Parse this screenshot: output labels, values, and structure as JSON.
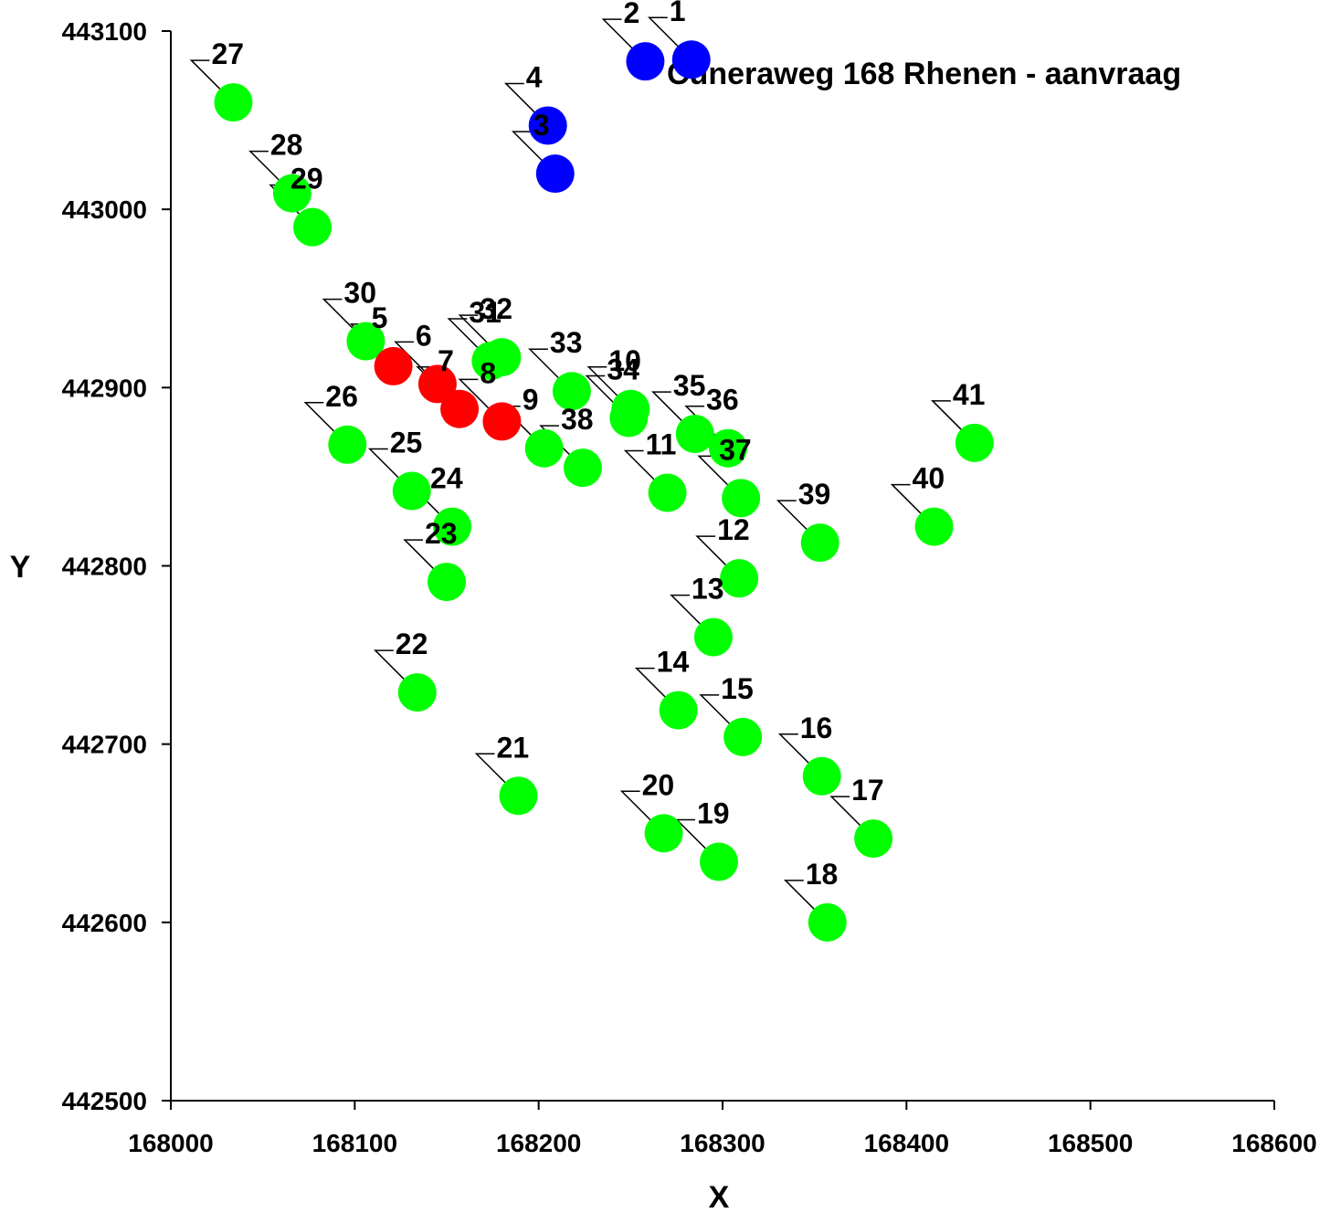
{
  "chart_data": {
    "type": "scatter",
    "title": "Cuneraweg 168 Rhenen - aanvraag",
    "xlabel": "X",
    "ylabel": "Y",
    "xlim": [
      168000,
      168600
    ],
    "ylim": [
      442500,
      443100
    ],
    "xticks": [
      "168000",
      "168100",
      "168200",
      "168300",
      "168400",
      "168500",
      "168600"
    ],
    "yticks": [
      "442500",
      "442600",
      "442700",
      "442800",
      "442900",
      "443000",
      "443100"
    ],
    "grid": false,
    "colors": {
      "blue": "#0000ff",
      "red": "#ff0000",
      "green": "#00ff00"
    },
    "points": [
      {
        "id": "1",
        "x": 168283,
        "y": 443084,
        "color": "blue"
      },
      {
        "id": "2",
        "x": 168258,
        "y": 443083,
        "color": "blue"
      },
      {
        "id": "3",
        "x": 168209,
        "y": 443020,
        "color": "blue"
      },
      {
        "id": "4",
        "x": 168205,
        "y": 443047,
        "color": "blue"
      },
      {
        "id": "5",
        "x": 168121,
        "y": 442912,
        "color": "red"
      },
      {
        "id": "6",
        "x": 168145,
        "y": 442902,
        "color": "red"
      },
      {
        "id": "7",
        "x": 168157,
        "y": 442888,
        "color": "red"
      },
      {
        "id": "8",
        "x": 168180,
        "y": 442881,
        "color": "red"
      },
      {
        "id": "9",
        "x": 168203,
        "y": 442866,
        "color": "green"
      },
      {
        "id": "10",
        "x": 168250,
        "y": 442888,
        "color": "green"
      },
      {
        "id": "11",
        "x": 168270,
        "y": 442841,
        "color": "green"
      },
      {
        "id": "12",
        "x": 168309,
        "y": 442793,
        "color": "green"
      },
      {
        "id": "13",
        "x": 168295,
        "y": 442760,
        "color": "green"
      },
      {
        "id": "14",
        "x": 168276,
        "y": 442719,
        "color": "green"
      },
      {
        "id": "15",
        "x": 168311,
        "y": 442704,
        "color": "green"
      },
      {
        "id": "16",
        "x": 168354,
        "y": 442682,
        "color": "green"
      },
      {
        "id": "17",
        "x": 168382,
        "y": 442647,
        "color": "green"
      },
      {
        "id": "18",
        "x": 168357,
        "y": 442600,
        "color": "green"
      },
      {
        "id": "19",
        "x": 168298,
        "y": 442634,
        "color": "green"
      },
      {
        "id": "20",
        "x": 168268,
        "y": 442650,
        "color": "green"
      },
      {
        "id": "21",
        "x": 168189,
        "y": 442671,
        "color": "green"
      },
      {
        "id": "22",
        "x": 168134,
        "y": 442729,
        "color": "green"
      },
      {
        "id": "23",
        "x": 168150,
        "y": 442791,
        "color": "green"
      },
      {
        "id": "24",
        "x": 168153,
        "y": 442822,
        "color": "green"
      },
      {
        "id": "25",
        "x": 168131,
        "y": 442842,
        "color": "green"
      },
      {
        "id": "26",
        "x": 168096,
        "y": 442868,
        "color": "green"
      },
      {
        "id": "27",
        "x": 168034,
        "y": 443060,
        "color": "green"
      },
      {
        "id": "28",
        "x": 168066,
        "y": 443009,
        "color": "green"
      },
      {
        "id": "29",
        "x": 168077,
        "y": 442990,
        "color": "green"
      },
      {
        "id": "30",
        "x": 168106,
        "y": 442926,
        "color": "green"
      },
      {
        "id": "31",
        "x": 168174,
        "y": 442915,
        "color": "green"
      },
      {
        "id": "32",
        "x": 168180,
        "y": 442917,
        "color": "green"
      },
      {
        "id": "33",
        "x": 168218,
        "y": 442898,
        "color": "green"
      },
      {
        "id": "34",
        "x": 168249,
        "y": 442883,
        "color": "green"
      },
      {
        "id": "35",
        "x": 168285,
        "y": 442874,
        "color": "green"
      },
      {
        "id": "36",
        "x": 168303,
        "y": 442866,
        "color": "green"
      },
      {
        "id": "37",
        "x": 168310,
        "y": 442838,
        "color": "green"
      },
      {
        "id": "38",
        "x": 168224,
        "y": 442855,
        "color": "green"
      },
      {
        "id": "39",
        "x": 168353,
        "y": 442813,
        "color": "green"
      },
      {
        "id": "40",
        "x": 168415,
        "y": 442822,
        "color": "green"
      },
      {
        "id": "41",
        "x": 168437,
        "y": 442869,
        "color": "green"
      }
    ]
  }
}
